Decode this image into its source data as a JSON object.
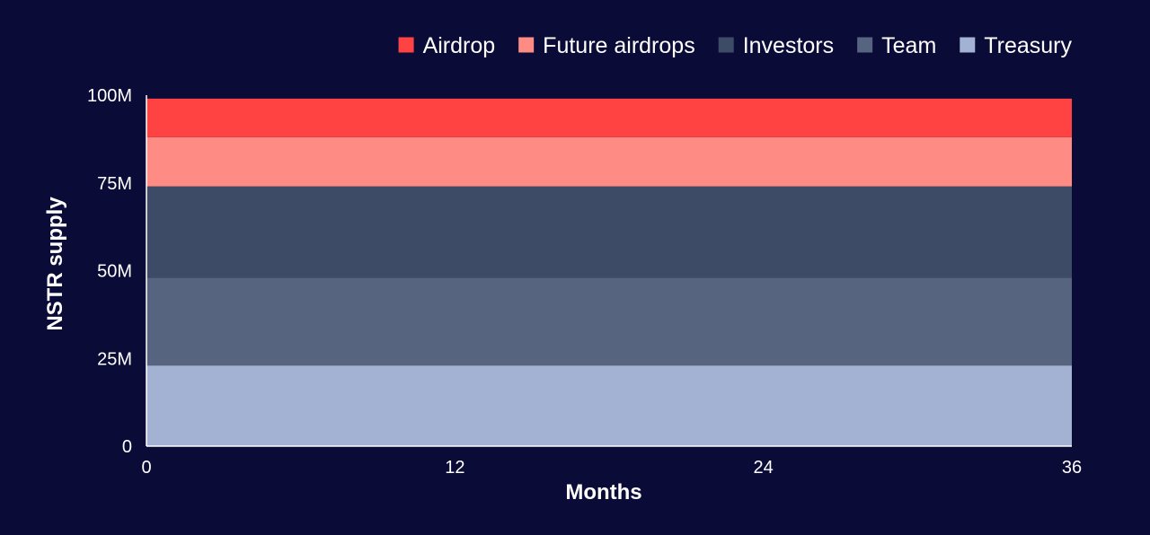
{
  "chart_data": {
    "type": "area",
    "stacked": true,
    "xlabel": "Months",
    "ylabel": "NSTR supply",
    "x": [
      0,
      36
    ],
    "xticks": [
      0,
      12,
      24,
      36
    ],
    "xtick_labels": [
      "0",
      "12",
      "24",
      "36"
    ],
    "xlim": [
      0,
      36
    ],
    "ylim": [
      0,
      100
    ],
    "yticks": [
      0,
      25,
      50,
      75,
      100
    ],
    "ytick_labels": [
      "0",
      "25M",
      "50M",
      "75M",
      "100M"
    ],
    "unit": "M",
    "grid": false,
    "legend_position": "top-right",
    "series": [
      {
        "name": "Treasury",
        "color": "#a3b1d2",
        "values": [
          23,
          23
        ]
      },
      {
        "name": "Team",
        "color": "#56647f",
        "values": [
          25,
          25
        ]
      },
      {
        "name": "Investors",
        "color": "#3e4b66",
        "values": [
          26,
          26
        ]
      },
      {
        "name": "Future airdrops",
        "color": "#ff8c84",
        "values": [
          14,
          14
        ]
      },
      {
        "name": "Airdrop",
        "color": "#ff4242",
        "values": [
          11,
          11
        ]
      }
    ],
    "legend_order": [
      "Airdrop",
      "Future airdrops",
      "Investors",
      "Team",
      "Treasury"
    ]
  }
}
